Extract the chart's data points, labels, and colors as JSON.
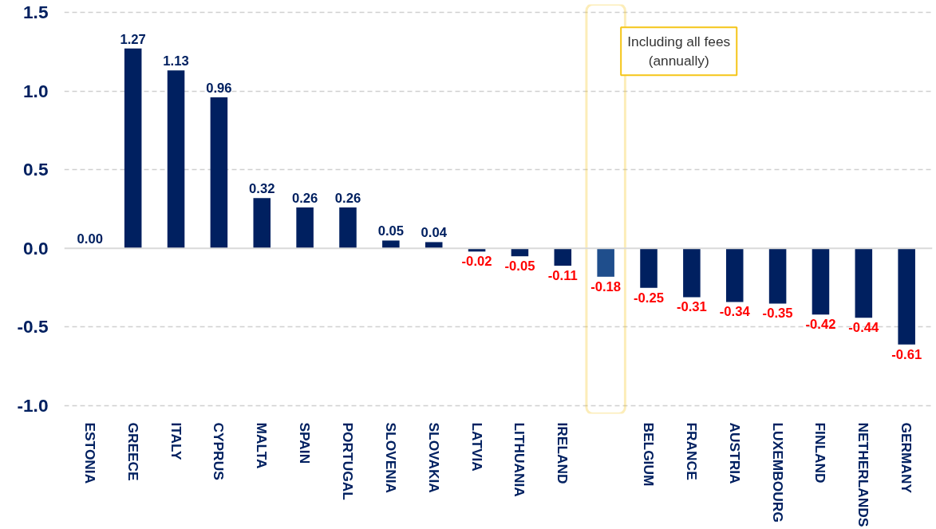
{
  "chart_data": {
    "type": "bar",
    "categories": [
      "ESTONIA",
      "GREECE",
      "ITALY",
      "CYPRUS",
      "MALTA",
      "SPAIN",
      "PORTUGAL",
      "SLOVENIA",
      "SLOVAKIA",
      "LATVIA",
      "LITHUANIA",
      "IRELAND",
      null,
      "BELGIUM",
      "FRANCE",
      "AUSTRIA",
      "LUXEMBOURG",
      "FINLAND",
      "NETHERLANDS",
      "GERMANY"
    ],
    "values": [
      0.0,
      1.27,
      1.13,
      0.96,
      0.32,
      0.26,
      0.26,
      0.05,
      0.04,
      -0.02,
      -0.05,
      -0.11,
      -0.18,
      -0.25,
      -0.31,
      -0.34,
      -0.35,
      -0.42,
      -0.44,
      -0.61
    ],
    "value_labels": [
      "0.00",
      "1.27",
      "1.13",
      "0.96",
      "0.32",
      "0.26",
      "0.26",
      "0.05",
      "0.04",
      "-0.02",
      "-0.05",
      "-0.11",
      "-0.18",
      "-0.25",
      "-0.31",
      "-0.34",
      "-0.35",
      "-0.42",
      "-0.44",
      "-0.61"
    ],
    "colors": [
      "#002060",
      "#002060",
      "#002060",
      "#002060",
      "#002060",
      "#002060",
      "#002060",
      "#002060",
      "#002060",
      "#002060",
      "#002060",
      "#002060",
      "#1f4e8c",
      "#002060",
      "#002060",
      "#002060",
      "#002060",
      "#002060",
      "#002060",
      "#002060"
    ],
    "annotations": [
      "Including all fees\n(annually)"
    ],
    "ylim": [
      -1.05,
      1.55
    ],
    "yticks": [
      {
        "value": -1.0,
        "label": "-1.0"
      },
      {
        "value": -0.5,
        "label": "-0.5"
      },
      {
        "value": 0.0,
        "label": "0.0"
      },
      {
        "value": 0.5,
        "label": "0.5"
      },
      {
        "value": 1.0,
        "label": "1.0"
      },
      {
        "value": 1.5,
        "label": "1.5"
      }
    ],
    "grid": "y"
  }
}
